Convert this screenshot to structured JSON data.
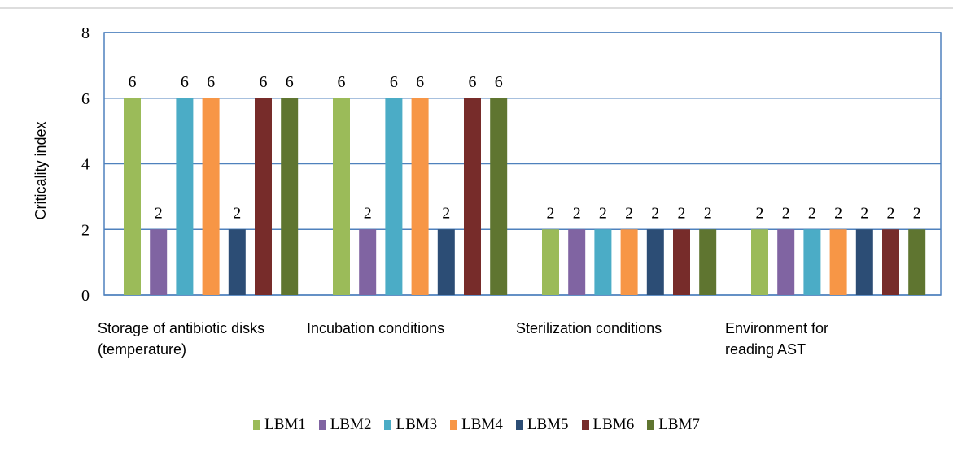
{
  "chart_data": {
    "type": "bar",
    "ylabel": "Criticality  index",
    "categories": [
      "Storage of antibiotic disks (temperature)",
      "Incubation conditions",
      "Sterilization conditions",
      "Environment for reading AST"
    ],
    "series": [
      {
        "name": "LBM1",
        "color": "#9bbb59",
        "values": [
          6,
          6,
          2,
          2
        ]
      },
      {
        "name": "LBM2",
        "color": "#8064a2",
        "values": [
          2,
          2,
          2,
          2
        ]
      },
      {
        "name": "LBM3",
        "color": "#4bacc6",
        "values": [
          6,
          6,
          2,
          2
        ]
      },
      {
        "name": "LBM4",
        "color": "#f79646",
        "values": [
          6,
          6,
          2,
          2
        ]
      },
      {
        "name": "LBM5",
        "color": "#2c4d75",
        "values": [
          2,
          2,
          2,
          2
        ]
      },
      {
        "name": "LBM6",
        "color": "#772c2a",
        "values": [
          6,
          6,
          2,
          2
        ]
      },
      {
        "name": "LBM7",
        "color": "#5f7530",
        "values": [
          6,
          6,
          2,
          2
        ]
      }
    ],
    "ylim": [
      0,
      8
    ],
    "yticks": [
      0,
      2,
      4,
      6,
      8
    ],
    "grid": true,
    "legend": "bottom"
  }
}
